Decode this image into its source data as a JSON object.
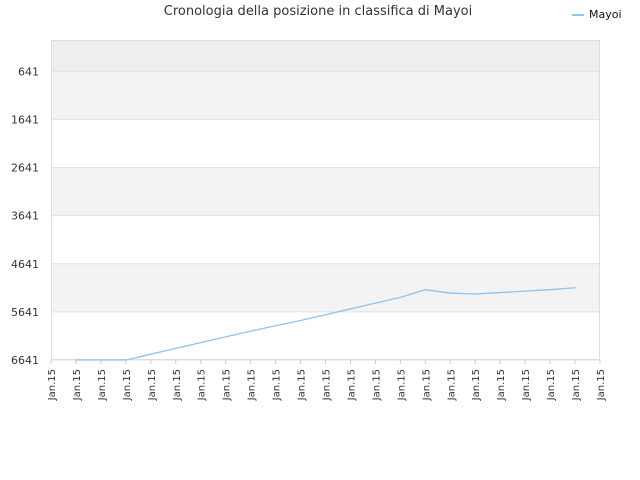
{
  "chart_data": {
    "type": "line",
    "title": "Cronologia della posizione in classifica di Mayoi",
    "xlabel": "",
    "ylabel": "",
    "x_categories": [
      "Jan.15",
      "Jan.15",
      "Jan.15",
      "Jan.15",
      "Jan.15",
      "Jan.15",
      "Jan.15",
      "Jan.15",
      "Jan.15",
      "Jan.15",
      "Jan.15",
      "Jan.15",
      "Jan.15",
      "Jan.15",
      "Jan.15",
      "Jan.15",
      "Jan.15",
      "Jan.15",
      "Jan.15",
      "Jan.15",
      "Jan.15",
      "Jan.15",
      "Jan.15"
    ],
    "y_ticks": [
      "641",
      "1641",
      "2641",
      "3641",
      "4641",
      "5641",
      "6641"
    ],
    "y_tick_values": [
      641,
      1641,
      2641,
      3641,
      4641,
      5641,
      6641
    ],
    "ylim": [
      -9,
      6641
    ],
    "y_inverted": true,
    "grid": true,
    "legend_position": "top-right",
    "series": [
      {
        "name": "Mayoi",
        "color": "#8fc3ec",
        "x": [
          1,
          2,
          3,
          4,
          5,
          6,
          7,
          8,
          9,
          10,
          11,
          12,
          13,
          14,
          15,
          16,
          17,
          18,
          19,
          20,
          21
        ],
        "values": [
          6641,
          6641,
          6641,
          6520,
          6400,
          6280,
          6160,
          6040,
          5930,
          5820,
          5700,
          5580,
          5460,
          5340,
          5180,
          5250,
          5270,
          5240,
          5210,
          5180,
          5140
        ]
      }
    ]
  }
}
